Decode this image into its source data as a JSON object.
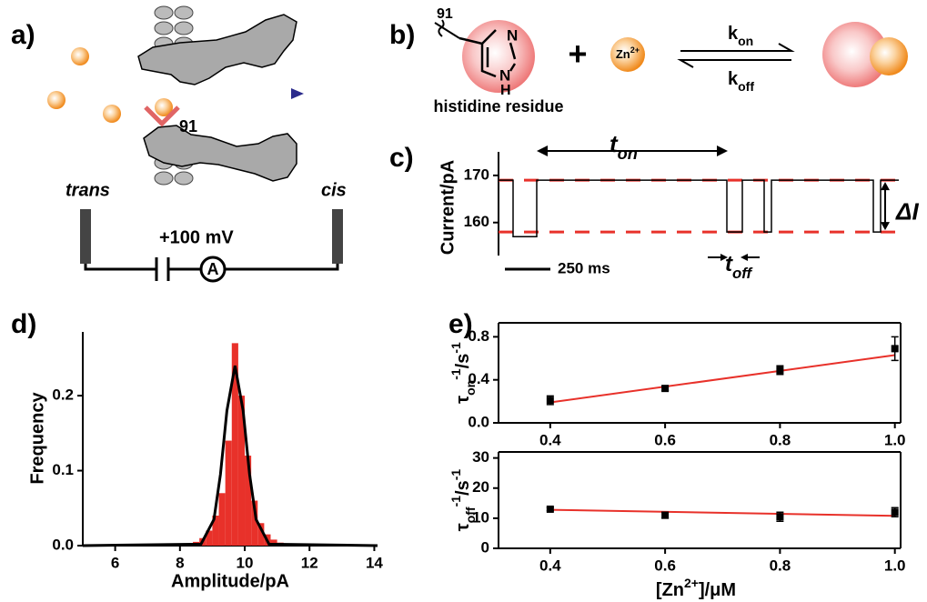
{
  "panel_labels": [
    "a)",
    "b)",
    "c)",
    "d)",
    "e)"
  ],
  "schematic": {
    "residue": "91",
    "trans": "trans",
    "cis": "cis",
    "voltage": "+100 mV",
    "ammeter": "A"
  },
  "reaction": {
    "residue": "91",
    "ring_n_top": "N",
    "ring_n_bottom": "N",
    "ring_h": "H",
    "caption": "histidine residue",
    "plus": "+",
    "ion": {
      "base": "Zn",
      "sup": "2+"
    },
    "k_on": {
      "base": "k",
      "sub": "on"
    },
    "k_off": {
      "base": "k",
      "sub": "off"
    }
  },
  "chart_data": [
    {
      "type": "line",
      "ylabel": "Current/pA",
      "ylim": [
        153,
        175
      ],
      "yticks": [
        160,
        170
      ],
      "xlim": [
        0,
        2210
      ],
      "x": [
        0,
        80,
        80,
        210,
        210,
        1255,
        1255,
        1340,
        1340,
        1460,
        1460,
        1500,
        1500,
        2060,
        2060,
        2100,
        2100,
        2200
      ],
      "values": [
        169,
        169,
        157,
        157,
        169,
        169,
        158,
        158,
        169,
        169,
        158,
        158,
        169,
        169,
        158,
        158,
        169,
        169
      ],
      "color": "#000000",
      "levels": [
        169,
        158
      ],
      "level_color": "#e8312a",
      "t_on": {
        "base": "t",
        "sub": "on"
      },
      "t_off": {
        "base": "t",
        "sub": "off"
      },
      "delta_i": "ΔI",
      "scale_bar": {
        "value": 250,
        "label": "250 ms"
      }
    },
    {
      "type": "histogram",
      "xlabel": "Amplitude/pA",
      "ylabel": "Frequency",
      "bins": [
        8.4,
        8.6,
        8.8,
        9.0,
        9.2,
        9.4,
        9.6,
        9.8,
        10.0,
        10.2,
        10.4,
        10.6,
        10.8,
        11.0,
        11.2,
        11.4,
        11.6,
        11.8
      ],
      "counts": [
        0.005,
        0.01,
        0.02,
        0.04,
        0.07,
        0.14,
        0.27,
        0.2,
        0.12,
        0.06,
        0.03,
        0.015,
        0.008,
        0.004,
        0.002,
        0.002,
        0.001
      ],
      "color": "#e8312a",
      "xlim": [
        5,
        14.1
      ],
      "xticks": [
        6,
        8,
        10,
        12,
        14
      ],
      "ylim": [
        0,
        0.285
      ],
      "yticks": [
        {
          "value": 0,
          "label": "0.0"
        },
        0.1,
        0.2
      ],
      "fit": {
        "x": [
          5,
          8.65,
          9.05,
          9.25,
          9.45,
          9.7,
          9.95,
          10.15,
          10.35,
          10.75,
          14.1
        ],
        "y": [
          0,
          0.002,
          0.035,
          0.095,
          0.18,
          0.24,
          0.18,
          0.095,
          0.035,
          0.002,
          0
        ],
        "color": "#000000"
      }
    },
    {
      "type": "scatter",
      "ylabel": {
        "base": "τ",
        "sub": "on",
        "sup": "-1",
        "unit": "/s",
        "unit_sup": "-1"
      },
      "x": [
        0.4,
        0.6,
        0.8,
        1.0
      ],
      "values": [
        0.21,
        0.32,
        0.49,
        0.69
      ],
      "errors": [
        0.04,
        0.02,
        0.04,
        0.11
      ],
      "color": "#000000",
      "fit": {
        "x": [
          0.4,
          1.0
        ],
        "y": [
          0.19,
          0.63
        ],
        "color": "#e8312a"
      },
      "xlim": [
        0.31,
        1.01
      ],
      "xticks": [
        0.4,
        0.6,
        0.8,
        {
          "value": 1,
          "label": "1.0"
        }
      ],
      "ylim": [
        0,
        0.93
      ],
      "yticks": [
        {
          "value": 0,
          "label": "0.0"
        },
        0.4,
        0.8
      ]
    },
    {
      "type": "scatter",
      "ylabel": {
        "base": "τ",
        "sub": "off",
        "sup": "-1",
        "unit": "/s",
        "unit_sup": "-1"
      },
      "xlabel": {
        "base": "[Zn",
        "sup": "2+",
        "rest": "]/μM"
      },
      "x": [
        0.4,
        0.6,
        0.8,
        1.0
      ],
      "values": [
        13,
        11,
        10.5,
        12
      ],
      "errors": [
        0.5,
        1,
        1.5,
        1.5
      ],
      "color": "#000000",
      "fit": {
        "x": [
          0.4,
          1.0
        ],
        "y": [
          12.8,
          10.8
        ],
        "color": "#e8312a"
      },
      "xlim": [
        0.31,
        1.01
      ],
      "xticks": [
        0.4,
        0.6,
        0.8,
        {
          "value": 1,
          "label": "1.0"
        }
      ],
      "ylim": [
        0,
        32
      ],
      "yticks": [
        0,
        10,
        20,
        30
      ]
    }
  ]
}
